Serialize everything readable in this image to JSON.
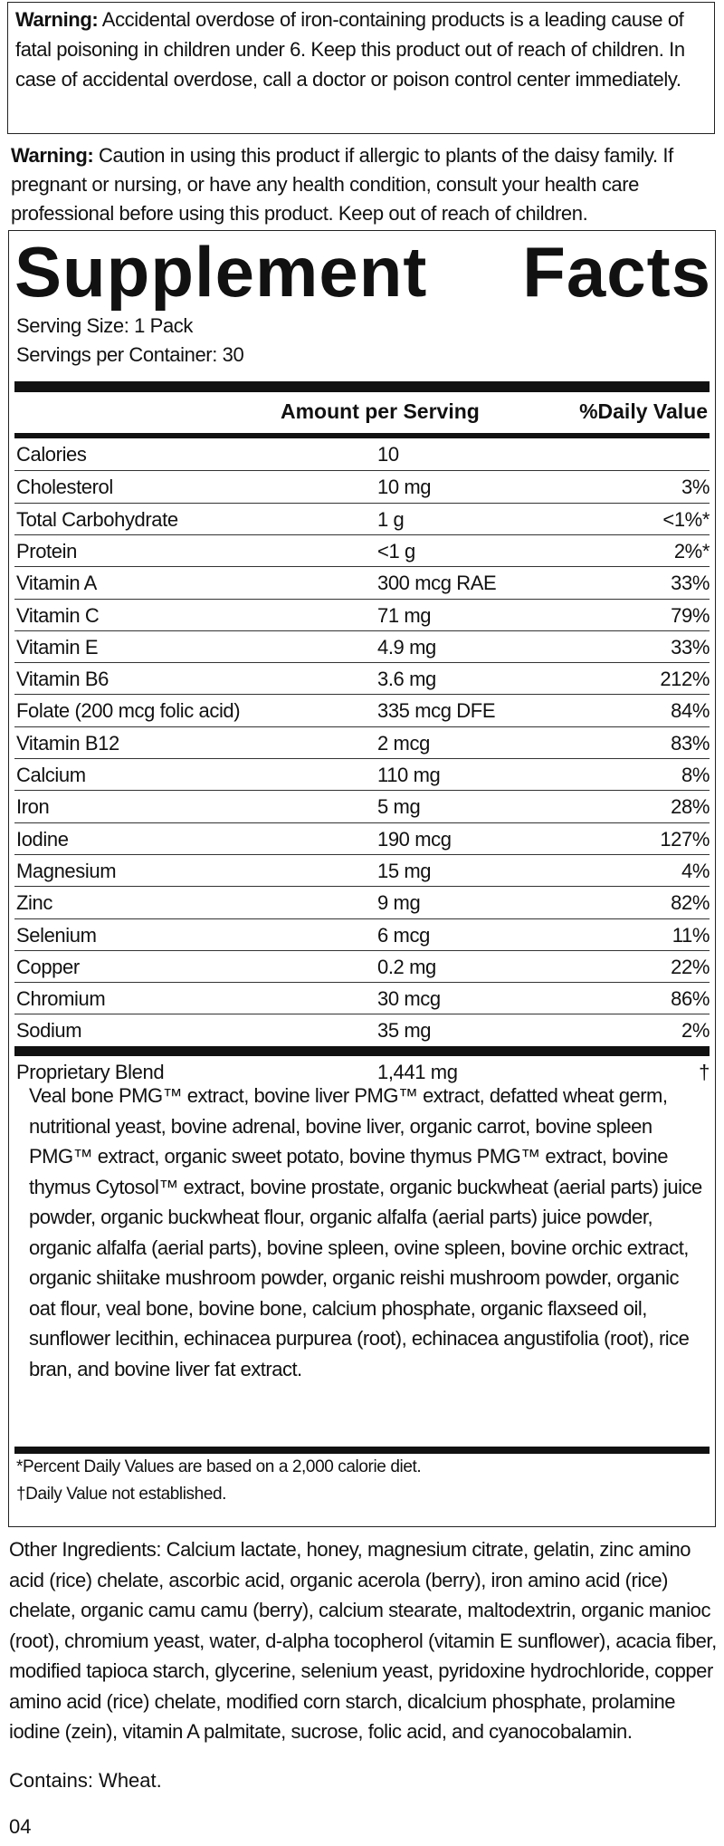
{
  "warning1": {
    "label": "Warning:",
    "text": " Accidental overdose of iron-containing products is a leading cause of fatal poisoning in children under 6. Keep this product out of reach of children. In case of accidental overdose, call a doctor or poison control center immediately."
  },
  "warning2": {
    "label": "Warning:",
    "text": " Caution in using this product if allergic to plants of the daisy family. If pregnant or nursing, or have any health condition, consult your health care professional before using this product. Keep out of reach of children."
  },
  "facts": {
    "title_left": "Supplement",
    "title_right": "Facts",
    "serving_size": "Serving Size: 1 Pack",
    "servings_per_container": "Servings per Container: 30",
    "col_amount": "Amount per Serving",
    "col_dv": "%Daily Value",
    "rows": [
      {
        "name": "Calories",
        "amount": "10",
        "dv": ""
      },
      {
        "name": "Cholesterol",
        "amount": "10 mg",
        "dv": "3%"
      },
      {
        "name": "Total Carbohydrate",
        "amount": "1 g",
        "dv": "<1%*"
      },
      {
        "name": "Protein",
        "amount": "<1 g",
        "dv": "2%*"
      },
      {
        "name": "Vitamin A",
        "amount": "300 mcg RAE",
        "dv": "33%"
      },
      {
        "name": "Vitamin C",
        "amount": "71 mg",
        "dv": "79%"
      },
      {
        "name": "Vitamin E",
        "amount": "4.9 mg",
        "dv": "33%"
      },
      {
        "name": "Vitamin B6",
        "amount": "3.6 mg",
        "dv": "212%"
      },
      {
        "name": "Folate (200 mcg folic acid)",
        "amount": "335 mcg DFE",
        "dv": "84%"
      },
      {
        "name": "Vitamin B12",
        "amount": "2 mcg",
        "dv": "83%"
      },
      {
        "name": "Calcium",
        "amount": "110 mg",
        "dv": "8%"
      },
      {
        "name": "Iron",
        "amount": "5 mg",
        "dv": "28%"
      },
      {
        "name": "Iodine",
        "amount": "190 mcg",
        "dv": "127%"
      },
      {
        "name": "Magnesium",
        "amount": "15 mg",
        "dv": "4%"
      },
      {
        "name": "Zinc",
        "amount": "9 mg",
        "dv": "82%"
      },
      {
        "name": "Selenium",
        "amount": "6 mcg",
        "dv": "11%"
      },
      {
        "name": "Copper",
        "amount": "0.2 mg",
        "dv": "22%"
      },
      {
        "name": "Chromium",
        "amount": "30 mcg",
        "dv": "86%"
      },
      {
        "name": "Sodium",
        "amount": "35 mg",
        "dv": "2%"
      }
    ],
    "blend": {
      "name": "Proprietary Blend",
      "amount": "1,441 mg",
      "dv": "†",
      "ingredients": "Veal bone PMG™ extract, bovine liver PMG™ extract, defatted wheat germ, nutritional yeast, bovine adrenal, bovine liver, organic carrot, bovine spleen PMG™ extract, organic sweet potato, bovine thymus PMG™ extract, bovine thymus Cytosol™ extract, bovine prostate, organic buckwheat (aerial parts) juice powder, organic buckwheat flour, organic alfalfa (aerial parts) juice powder, organic alfalfa (aerial parts), bovine spleen, ovine spleen, bovine orchic extract, organic shiitake mushroom powder, organic reishi mushroom powder, organic oat flour, veal bone, bovine bone, calcium phosphate, organic flaxseed oil, sunflower lecithin, echinacea purpurea (root), echinacea angustifolia (root), rice bran, and bovine liver fat extract."
    },
    "footnote1": "*Percent Daily Values are based on a 2,000 calorie diet.",
    "footnote2": "†Daily Value not established."
  },
  "other_ingredients": "Other Ingredients: Calcium lactate, honey, magnesium citrate, gelatin, zinc amino acid (rice) chelate, ascorbic acid, organic acerola (berry), iron amino acid (rice) chelate, organic camu camu (berry), calcium stearate, maltodextrin, organic manioc (root), chromium yeast, water, d-alpha tocopherol (vitamin E sunflower), acacia fiber, modified tapioca starch, glycerine, selenium yeast, pyridoxine hydrochloride, copper amino acid (rice) chelate, modified corn starch, dicalcium phosphate, prolamine iodine (zein), vitamin A palmitate, sucrose, folic acid, and cyanocobalamin.",
  "contains": "Contains: Wheat.",
  "code": "04"
}
